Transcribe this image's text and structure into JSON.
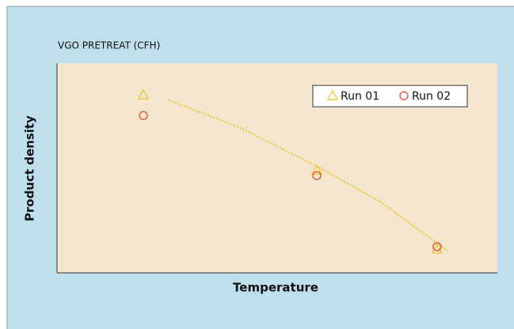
{
  "chart_data": {
    "type": "scatter",
    "title": "VGO PRETREAT (CFH)",
    "x_label": "Temperature",
    "y_label": "Product density",
    "xlim": [
      0,
      100
    ],
    "ylim": [
      0,
      100
    ],
    "legend": "top-right",
    "series": [
      {
        "name": "Run 01",
        "color": "#efc21f",
        "marker": "triangle",
        "x": [
          19.6,
          59,
          86.3
        ],
        "values": [
          84.9,
          49,
          11.3
        ]
      },
      {
        "name": "Run 02",
        "color": "#e2462a",
        "marker": "circle",
        "x": [
          19.6,
          59,
          86.3
        ],
        "values": [
          75.1,
          46.4,
          12.5
        ]
      }
    ],
    "trendline": {
      "color": "#efc21f",
      "x": [
        25.4,
        41,
        59,
        73.4,
        88.7
      ],
      "values": [
        82.3,
        69.8,
        50.9,
        33.9,
        10.6
      ]
    }
  }
}
